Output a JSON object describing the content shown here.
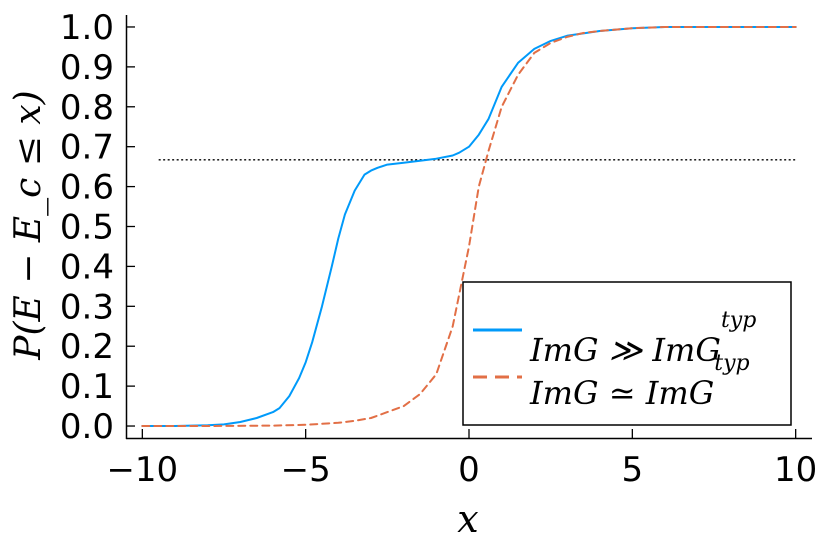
{
  "chart_data": {
    "type": "line",
    "xlabel": "x",
    "ylabel": "P(E − E_c ≤ x)",
    "xlim": [
      -10.5,
      10.5
    ],
    "ylim": [
      -0.03,
      1.03
    ],
    "xticks": [
      -10,
      -5,
      0,
      5,
      10
    ],
    "xtick_labels": [
      "−10",
      "−5",
      "0",
      "5",
      "10"
    ],
    "yticks": [
      0.0,
      0.1,
      0.2,
      0.3,
      0.4,
      0.5,
      0.6,
      0.7,
      0.8,
      0.9,
      1.0
    ],
    "ytick_labels": [
      "0.0",
      "0.1",
      "0.2",
      "0.3",
      "0.4",
      "0.5",
      "0.6",
      "0.7",
      "0.8",
      "0.9",
      "1.0"
    ],
    "grid": false,
    "legend_position": "bottom-right",
    "reference_line": {
      "y": 0.667,
      "x_range": [
        -9.5,
        10
      ],
      "style": "dotted",
      "color": "#000000"
    },
    "series": [
      {
        "name": "ImG ≫ ImG^typ",
        "color": "#009AFA",
        "style": "solid",
        "x": [
          -10,
          -9,
          -8,
          -7.5,
          -7,
          -6.5,
          -6,
          -5.8,
          -5.5,
          -5.2,
          -5,
          -4.8,
          -4.5,
          -4.2,
          -4,
          -3.8,
          -3.5,
          -3.2,
          -3,
          -2.8,
          -2.5,
          -2,
          -1.5,
          -1,
          -0.5,
          -0.3,
          0,
          0.3,
          0.6,
          1,
          1.5,
          2,
          2.5,
          3,
          4,
          5,
          6,
          8,
          10
        ],
        "y": [
          0.0,
          0.0,
          0.002,
          0.004,
          0.01,
          0.02,
          0.035,
          0.045,
          0.075,
          0.12,
          0.16,
          0.21,
          0.3,
          0.4,
          0.47,
          0.53,
          0.59,
          0.63,
          0.64,
          0.647,
          0.655,
          0.66,
          0.665,
          0.67,
          0.678,
          0.685,
          0.7,
          0.73,
          0.77,
          0.85,
          0.91,
          0.945,
          0.965,
          0.978,
          0.99,
          0.997,
          1.0,
          1.0,
          1.0
        ]
      },
      {
        "name": "ImG ≃ ImG^typ",
        "color": "#E26F46",
        "style": "dashed",
        "x": [
          -10,
          -8,
          -6,
          -5,
          -4,
          -3.5,
          -3,
          -2.5,
          -2,
          -1.5,
          -1,
          -0.5,
          0,
          0.3,
          0.6,
          1,
          1.5,
          2,
          2.5,
          3,
          3.5,
          4,
          5,
          6,
          8,
          10
        ],
        "y": [
          0.0,
          0.0,
          0.001,
          0.003,
          0.008,
          0.013,
          0.02,
          0.035,
          0.05,
          0.08,
          0.13,
          0.25,
          0.45,
          0.6,
          0.69,
          0.8,
          0.88,
          0.935,
          0.96,
          0.975,
          0.985,
          0.99,
          0.997,
          1.0,
          1.0,
          1.0
        ]
      }
    ],
    "legend": [
      {
        "base": "ImG ≫ ImG",
        "sup": "typ"
      },
      {
        "base": "ImG ≃ ImG",
        "sup": "typ"
      }
    ]
  }
}
